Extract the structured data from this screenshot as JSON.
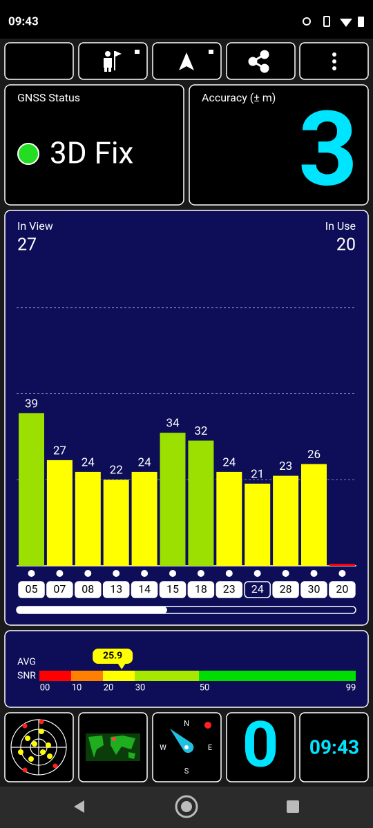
{
  "status_bar": {
    "time": "09:43"
  },
  "gnss_status": {
    "title": "GNSS Status",
    "fix": "3D Fix"
  },
  "accuracy": {
    "title": "Accuracy (± m)",
    "value": 3
  },
  "satellites": {
    "in_view_label": "In View",
    "in_view": 27,
    "in_use_label": "In Use",
    "in_use": 20
  },
  "chart_data": {
    "type": "bar",
    "categories": [
      "05",
      "07",
      "08",
      "13",
      "14",
      "15",
      "18",
      "23",
      "24",
      "28",
      "30",
      "20"
    ],
    "values": [
      39,
      27,
      24,
      22,
      24,
      34,
      32,
      24,
      21,
      23,
      26,
      0
    ],
    "value_labels": [
      "39",
      "27",
      "24",
      "22",
      "24",
      "34",
      "32",
      "24",
      "21",
      "23",
      "26",
      null
    ],
    "colors": [
      "#9be000",
      "#ffff00",
      "#ffff00",
      "#ffff00",
      "#ffff00",
      "#9be000",
      "#9be000",
      "#ffff00",
      "#ffff00",
      "#ffff00",
      "#ffff00",
      "#ff0000"
    ],
    "used": [
      true,
      true,
      true,
      true,
      true,
      true,
      true,
      true,
      false,
      true,
      true,
      true
    ],
    "ylim": [
      0,
      88
    ],
    "grid_lines": [
      22,
      44,
      66
    ]
  },
  "snr": {
    "label_line1": "AVG",
    "label_line2": "SNR",
    "average": 25.9,
    "ticks": [
      {
        "value": 0,
        "label": "00"
      },
      10,
      20,
      30,
      50,
      99
    ],
    "colors": [
      "#ff0000",
      "#ff7f00",
      "#ffff00",
      "#a6e800",
      "#00dd00"
    ]
  },
  "tiles": {
    "compass": [
      "N",
      "E",
      "S",
      "W"
    ],
    "speed": 0,
    "clock": "09:43"
  }
}
